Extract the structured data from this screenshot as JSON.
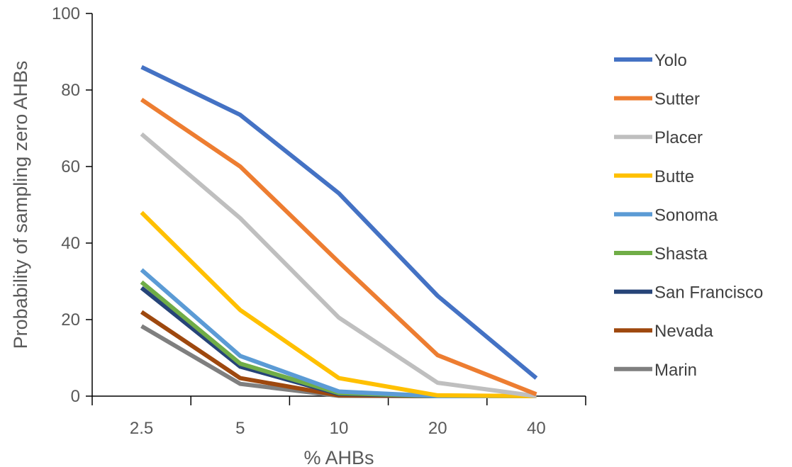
{
  "chart_data": {
    "type": "line",
    "title": "",
    "xlabel": "% AHBs",
    "ylabel": "Probability of sampling zero AHBs",
    "categories": [
      "2.5",
      "5",
      "10",
      "20",
      "40"
    ],
    "ylim": [
      0,
      100
    ],
    "yticks": [
      "0",
      "20",
      "40",
      "60",
      "80",
      "100"
    ],
    "grid": false,
    "legend_position": "right",
    "series": [
      {
        "name": "Yolo",
        "color": "#4472C4",
        "values": [
          86,
          73.5,
          53,
          26.2,
          4.7
        ]
      },
      {
        "name": "Sutter",
        "color": "#ED7D31",
        "values": [
          77.5,
          60,
          35,
          10.7,
          0.5
        ]
      },
      {
        "name": "Placer",
        "color": "#BFBFBF",
        "values": [
          68.5,
          46.5,
          20.5,
          3.5,
          0
        ]
      },
      {
        "name": "Butte",
        "color": "#FFC000",
        "values": [
          48,
          22.5,
          4.7,
          0.2,
          0
        ]
      },
      {
        "name": "Sonoma",
        "color": "#5B9BD5",
        "values": [
          33,
          10.5,
          1.2,
          0,
          0
        ]
      },
      {
        "name": "Shasta",
        "color": "#70AD47",
        "values": [
          29.8,
          8.5,
          0.8,
          0,
          0
        ]
      },
      {
        "name": "San Francisco",
        "color": "#264478",
        "values": [
          28.3,
          7.7,
          0.6,
          0,
          0
        ]
      },
      {
        "name": "Nevada",
        "color": "#9E480E",
        "values": [
          22,
          4.7,
          0.2,
          0,
          0
        ]
      },
      {
        "name": "Marin",
        "color": "#7F7F7F",
        "values": [
          18.3,
          3.2,
          0.1,
          0,
          0
        ]
      }
    ]
  }
}
